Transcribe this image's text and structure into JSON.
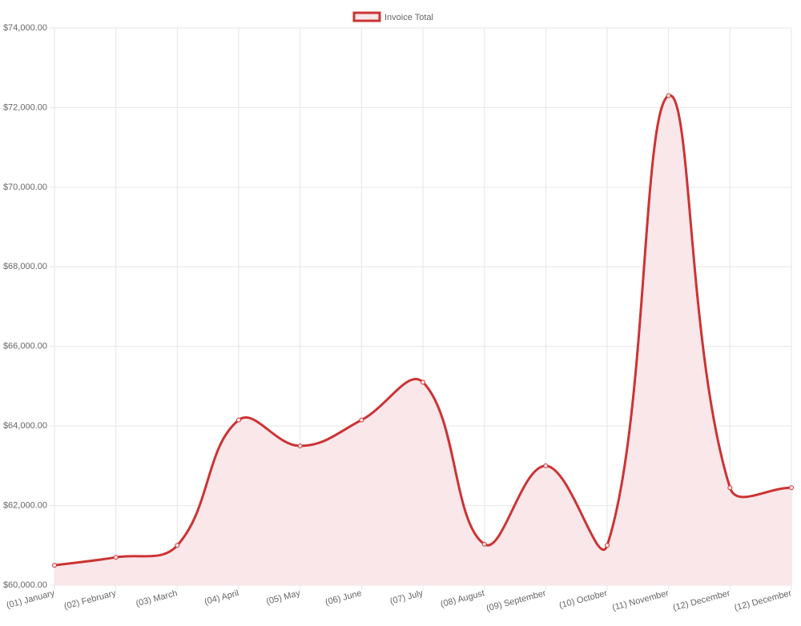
{
  "chart_data": {
    "type": "line",
    "categories": [
      "(01) January",
      "(02) February",
      "(03) March",
      "(04) April",
      "(05) May",
      "(06) June",
      "(07) July",
      "(08) August",
      "(09) September",
      "(10) October",
      "(11) November",
      "(12) December",
      "(12) December"
    ],
    "series": [
      {
        "name": "Invoice Total",
        "color": "#cc3333",
        "fill_color": "#f9e7ea",
        "values": [
          60500,
          60700,
          61000,
          64150,
          63500,
          64150,
          65100,
          61030,
          63000,
          61000,
          72300,
          62450,
          62450
        ]
      }
    ],
    "ylim": [
      60000,
      74000
    ],
    "yticks": [
      {
        "value": 60000,
        "label": "$60,000.00"
      },
      {
        "value": 62000,
        "label": "$62,000.00"
      },
      {
        "value": 64000,
        "label": "$64,000.00"
      },
      {
        "value": 66000,
        "label": "$66,000.00"
      },
      {
        "value": 68000,
        "label": "$68,000.00"
      },
      {
        "value": 70000,
        "label": "$70,000.00"
      },
      {
        "value": 72000,
        "label": "$72,000.00"
      },
      {
        "value": 74000,
        "label": "$74,000.00"
      }
    ],
    "grid": true,
    "legend": "top"
  }
}
